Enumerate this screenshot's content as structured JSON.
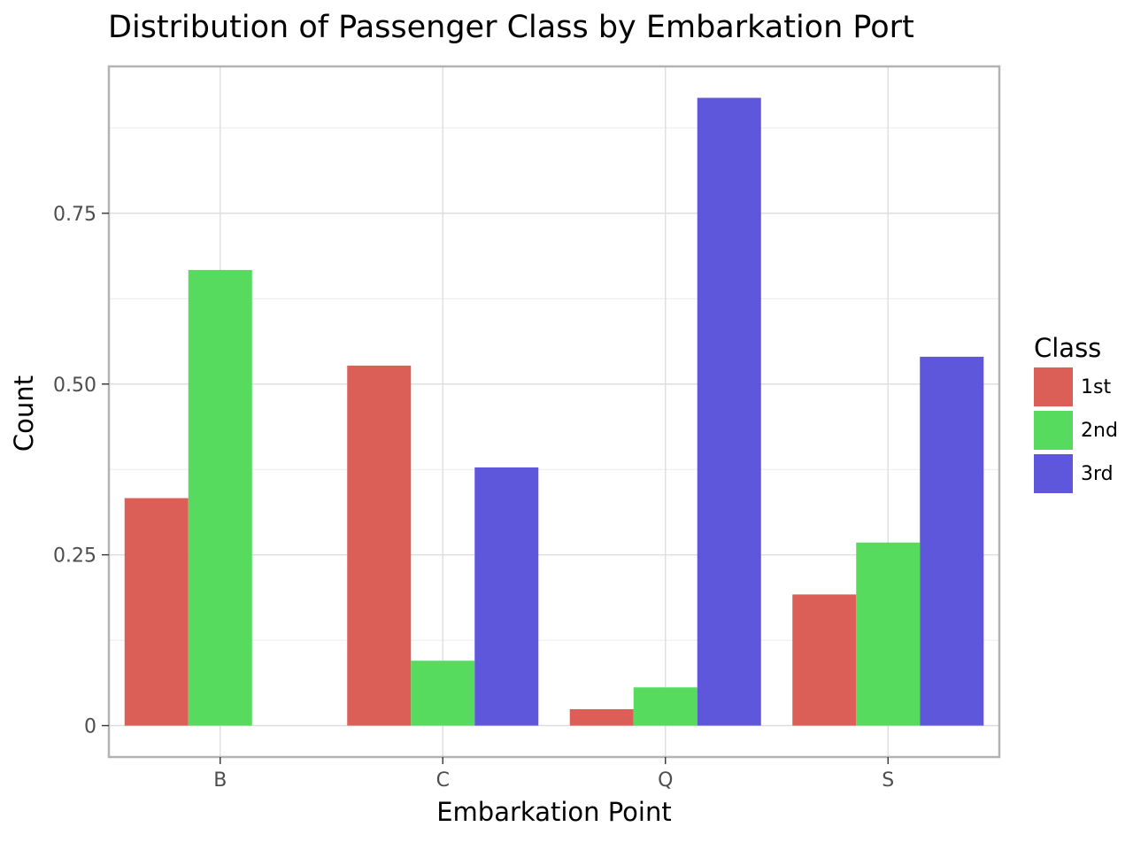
{
  "chart_data": {
    "type": "bar",
    "title": "Distribution of Passenger Class by Embarkation Port",
    "xlabel": "Embarkation Point",
    "ylabel": "Count",
    "categories": [
      "B",
      "C",
      "Q",
      "S"
    ],
    "series": [
      {
        "name": "1st",
        "color": "#db5f57",
        "values": [
          0.333,
          0.527,
          0.024,
          0.192
        ]
      },
      {
        "name": "2nd",
        "color": "#57db5f",
        "values": [
          0.667,
          0.095,
          0.056,
          0.268
        ]
      },
      {
        "name": "3rd",
        "color": "#5f57db",
        "values": [
          null,
          0.378,
          0.919,
          0.54
        ]
      }
    ],
    "yticks": [
      0,
      0.25,
      0.5,
      0.75
    ],
    "ytick_labels": [
      "0",
      "0.25",
      "0.50",
      "0.75"
    ],
    "ylim": [
      -0.046,
      0.965
    ],
    "grid": true,
    "legend": {
      "title": "Class",
      "placement": "right"
    }
  }
}
